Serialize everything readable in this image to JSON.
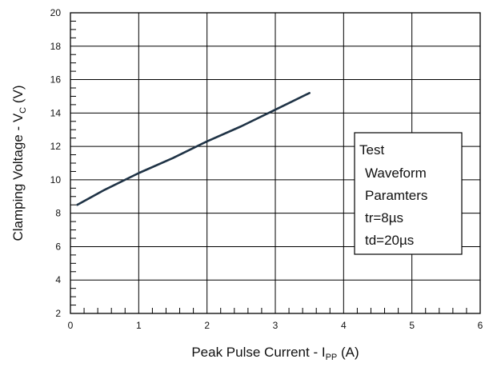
{
  "chart_data": {
    "type": "line",
    "xlabel": "Peak Pulse Current - I",
    "xlabel_sub": "PP",
    "xlabel_unit": " (A)",
    "ylabel": "Clamping Voltage - V",
    "ylabel_sub": "C",
    "ylabel_unit": " (V)",
    "xlim": [
      0,
      6
    ],
    "ylim": [
      2,
      20
    ],
    "x_ticks": [
      "0",
      "1",
      "2",
      "3",
      "4",
      "5",
      "6"
    ],
    "y_ticks": [
      "2",
      "4",
      "6",
      "8",
      "10",
      "12",
      "14",
      "16",
      "18",
      "20"
    ],
    "grid": true,
    "series": [
      {
        "color": "#1f3346",
        "x": [
          0.1,
          0.5,
          1.0,
          1.5,
          2.0,
          2.5,
          3.0,
          3.5
        ],
        "y": [
          8.5,
          9.4,
          10.4,
          11.3,
          12.3,
          13.2,
          14.2,
          15.2
        ]
      }
    ],
    "annotation_lines": [
      "Test",
      "Waveform",
      "Paramters",
      "tr=8µs",
      "td=20µs"
    ],
    "annotation_location": "right"
  }
}
